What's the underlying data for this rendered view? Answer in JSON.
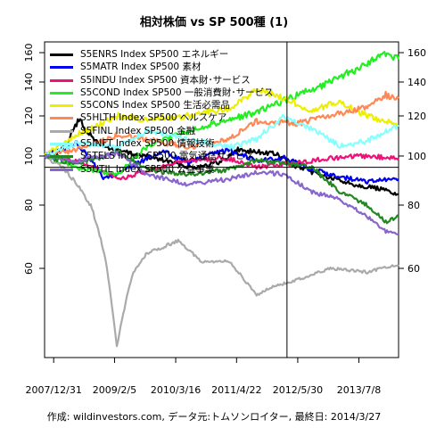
{
  "chart_data": {
    "type": "line",
    "title": "相対株価 vs SP 500種 (1)",
    "source": "作成: wildinvestors.com, データ元:トムソンロイター, 最終日: 2014/3/27",
    "x_tick_labels": [
      "2007/12/31",
      "2009/2/5",
      "2010/3/16",
      "2011/4/22",
      "2012/5/30",
      "2013/7/8"
    ],
    "x_ticks": [
      "2007-12-31",
      "2009-02-05",
      "2010-03-16",
      "2011-04-22",
      "2012-05-30",
      "2013-07-08"
    ],
    "x_range": [
      "2007-11-01",
      "2014-03-27"
    ],
    "y_scale": "log",
    "y_ticks": [
      60,
      80,
      100,
      120,
      140,
      160
    ],
    "ylim": [
      40,
      168
    ],
    "reference_lines": {
      "horizontal": 95,
      "vertical_date": "2012-03-20"
    },
    "grid": false,
    "legend_position": "top-left",
    "series": [
      {
        "name": "S5ENRS Index SP500 エネルギー",
        "color": "#000000",
        "points": [
          [
            "2007-11-01",
            100
          ],
          [
            "2008-03-01",
            103
          ],
          [
            "2008-06-15",
            118
          ],
          [
            "2008-09-15",
            108
          ],
          [
            "2008-12-15",
            104
          ],
          [
            "2009-06-01",
            101
          ],
          [
            "2010-01-01",
            98
          ],
          [
            "2010-07-01",
            95
          ],
          [
            "2011-01-01",
            97
          ],
          [
            "2011-05-01",
            103
          ],
          [
            "2011-08-15",
            102
          ],
          [
            "2012-01-01",
            101
          ],
          [
            "2012-06-01",
            95
          ],
          [
            "2012-12-01",
            91
          ],
          [
            "2013-06-01",
            88
          ],
          [
            "2013-12-01",
            86
          ],
          [
            "2014-03-27",
            84
          ]
        ]
      },
      {
        "name": "S5MATR Index SP500 素材",
        "color": "#0000ee",
        "points": [
          [
            "2007-11-01",
            100
          ],
          [
            "2008-06-01",
            106
          ],
          [
            "2008-12-01",
            90
          ],
          [
            "2009-06-01",
            96
          ],
          [
            "2010-01-01",
            102
          ],
          [
            "2010-06-01",
            97
          ],
          [
            "2011-03-01",
            103
          ],
          [
            "2011-09-01",
            98
          ],
          [
            "2012-03-01",
            99
          ],
          [
            "2012-09-01",
            94
          ],
          [
            "2013-03-01",
            91
          ],
          [
            "2013-09-01",
            89
          ],
          [
            "2014-03-27",
            90
          ]
        ]
      },
      {
        "name": "S5INDU Index SP500 資本財･サービス",
        "color": "#ee1177",
        "points": [
          [
            "2007-11-01",
            100
          ],
          [
            "2008-06-01",
            98
          ],
          [
            "2009-03-01",
            90
          ],
          [
            "2009-09-01",
            93
          ],
          [
            "2010-06-01",
            98
          ],
          [
            "2011-03-01",
            99
          ],
          [
            "2011-09-01",
            95
          ],
          [
            "2012-06-01",
            97
          ],
          [
            "2013-01-01",
            99
          ],
          [
            "2013-09-01",
            100
          ],
          [
            "2014-03-27",
            99
          ]
        ]
      },
      {
        "name": "S5COND Index SP500 一般消費財･サービス",
        "color": "#22ee22",
        "points": [
          [
            "2007-11-01",
            100
          ],
          [
            "2008-06-01",
            95
          ],
          [
            "2009-03-01",
            92
          ],
          [
            "2009-09-01",
            104
          ],
          [
            "2010-06-01",
            112
          ],
          [
            "2011-03-01",
            118
          ],
          [
            "2011-09-01",
            122
          ],
          [
            "2012-06-01",
            132
          ],
          [
            "2013-01-01",
            140
          ],
          [
            "2013-09-01",
            152
          ],
          [
            "2014-01-01",
            160
          ],
          [
            "2014-03-27",
            155
          ]
        ]
      },
      {
        "name": "S5CONS Index SP500 生活必需品",
        "color": "#eeee00",
        "points": [
          [
            "2007-11-01",
            100
          ],
          [
            "2008-06-01",
            110
          ],
          [
            "2009-03-01",
            120
          ],
          [
            "2009-09-01",
            118
          ],
          [
            "2010-06-01",
            120
          ],
          [
            "2011-03-01",
            124
          ],
          [
            "2011-09-01",
            135
          ],
          [
            "2012-03-01",
            130
          ],
          [
            "2012-09-01",
            123
          ],
          [
            "2013-03-01",
            128
          ],
          [
            "2013-09-01",
            120
          ],
          [
            "2014-03-27",
            115
          ]
        ]
      },
      {
        "name": "S5HLTH Index SP500 ヘルスケア",
        "color": "#ff8855",
        "points": [
          [
            "2007-11-01",
            100
          ],
          [
            "2008-06-01",
            103
          ],
          [
            "2009-03-01",
            110
          ],
          [
            "2009-09-01",
            108
          ],
          [
            "2010-06-01",
            104
          ],
          [
            "2011-03-01",
            108
          ],
          [
            "2011-09-01",
            117
          ],
          [
            "2012-06-01",
            116
          ],
          [
            "2013-01-01",
            120
          ],
          [
            "2013-09-01",
            125
          ],
          [
            "2014-01-01",
            132
          ],
          [
            "2014-03-27",
            130
          ]
        ]
      },
      {
        "name": "S5FINL Index SP500 金融",
        "color": "#aaaaaa",
        "points": [
          [
            "2007-11-01",
            100
          ],
          [
            "2008-03-01",
            95
          ],
          [
            "2008-06-01",
            88
          ],
          [
            "2008-09-01",
            80
          ],
          [
            "2008-12-01",
            64
          ],
          [
            "2009-02-20",
            42
          ],
          [
            "2009-06-01",
            58
          ],
          [
            "2009-09-01",
            64
          ],
          [
            "2010-04-01",
            68
          ],
          [
            "2010-09-01",
            62
          ],
          [
            "2011-03-01",
            62
          ],
          [
            "2011-09-01",
            53
          ],
          [
            "2011-12-01",
            55
          ],
          [
            "2012-06-01",
            57
          ],
          [
            "2013-01-01",
            60
          ],
          [
            "2013-09-01",
            59
          ],
          [
            "2014-03-27",
            61
          ]
        ]
      },
      {
        "name": "S5INFT Index SP500 情報技術",
        "color": "#88ffff",
        "points": [
          [
            "2007-11-01",
            100
          ],
          [
            "2008-06-01",
            106
          ],
          [
            "2009-03-01",
            104
          ],
          [
            "2009-09-01",
            112
          ],
          [
            "2010-06-01",
            108
          ],
          [
            "2011-03-01",
            104
          ],
          [
            "2011-09-01",
            108
          ],
          [
            "2012-03-01",
            120
          ],
          [
            "2012-09-01",
            113
          ],
          [
            "2013-03-01",
            105
          ],
          [
            "2013-09-01",
            107
          ],
          [
            "2014-03-27",
            115
          ]
        ]
      },
      {
        "name": "S5TELS Index SP500 電気通信サービス",
        "color": "#228822",
        "points": [
          [
            "2007-11-01",
            100
          ],
          [
            "2008-06-01",
            96
          ],
          [
            "2009-03-01",
            102
          ],
          [
            "2009-09-01",
            94
          ],
          [
            "2010-06-01",
            92
          ],
          [
            "2011-03-01",
            94
          ],
          [
            "2011-09-01",
            98
          ],
          [
            "2012-03-01",
            97
          ],
          [
            "2012-09-01",
            95
          ],
          [
            "2013-03-01",
            85
          ],
          [
            "2013-09-01",
            80
          ],
          [
            "2014-01-01",
            74
          ],
          [
            "2014-03-27",
            76
          ]
        ]
      },
      {
        "name": "S5UTIL Index SP500 公益事業",
        "color": "#8866cc",
        "points": [
          [
            "2007-11-01",
            100
          ],
          [
            "2008-06-01",
            98
          ],
          [
            "2009-03-01",
            101
          ],
          [
            "2009-09-01",
            92
          ],
          [
            "2010-06-01",
            88
          ],
          [
            "2011-03-01",
            90
          ],
          [
            "2011-09-01",
            93
          ],
          [
            "2012-03-01",
            92
          ],
          [
            "2012-09-01",
            85
          ],
          [
            "2013-03-01",
            82
          ],
          [
            "2013-09-01",
            76
          ],
          [
            "2014-01-01",
            71
          ],
          [
            "2014-03-27",
            70
          ]
        ]
      }
    ]
  }
}
